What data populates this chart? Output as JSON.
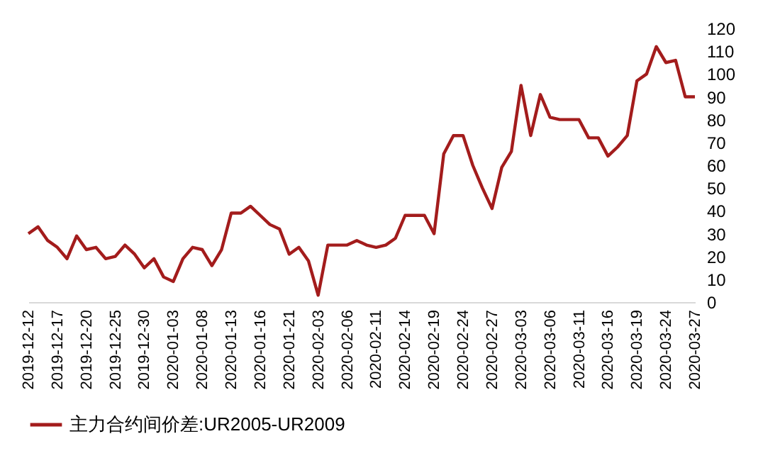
{
  "chart_data": {
    "type": "line",
    "categories": [
      "2019-12-12",
      null,
      null,
      "2019-12-17",
      null,
      null,
      "2019-12-20",
      null,
      null,
      "2019-12-25",
      null,
      null,
      "2019-12-30",
      null,
      null,
      "2020-01-03",
      null,
      null,
      "2020-01-08",
      null,
      null,
      "2020-01-13",
      null,
      null,
      "2020-01-16",
      null,
      null,
      "2020-01-21",
      null,
      null,
      "2020-02-03",
      null,
      null,
      "2020-02-06",
      null,
      null,
      "2020-02-11",
      null,
      null,
      "2020-02-14",
      null,
      null,
      "2020-02-19",
      null,
      null,
      "2020-02-24",
      null,
      null,
      "2020-02-27",
      null,
      null,
      "2020-03-03",
      null,
      null,
      "2020-03-06",
      null,
      null,
      "2020-03-11",
      null,
      null,
      "2020-03-16",
      null,
      null,
      "2020-03-19",
      null,
      null,
      "2020-03-24",
      null,
      null,
      "2020-03-27"
    ],
    "series": [
      {
        "name": "主力合约间价差:UR2005-UR2009",
        "color": "#a31c1c",
        "values": [
          30,
          33,
          27,
          24,
          19,
          29,
          23,
          24,
          19,
          20,
          25,
          21,
          15,
          19,
          11,
          9,
          19,
          24,
          23,
          16,
          23,
          39,
          39,
          42,
          38,
          34,
          32,
          21,
          24,
          18,
          3,
          25,
          25,
          25,
          27,
          25,
          24,
          25,
          28,
          38,
          38,
          38,
          30,
          65,
          73,
          73,
          60,
          50,
          41,
          59,
          66,
          95,
          73,
          91,
          81,
          80,
          80,
          80,
          72,
          72,
          64,
          68,
          73,
          97,
          100,
          112,
          105,
          106,
          90,
          90
        ]
      }
    ],
    "ylim": [
      0,
      120
    ],
    "yticks": [
      0,
      10,
      20,
      30,
      40,
      50,
      60,
      70,
      80,
      90,
      100,
      110,
      120
    ],
    "grid": false,
    "legend": "bottom",
    "marker": "none",
    "line_style": "solid"
  }
}
